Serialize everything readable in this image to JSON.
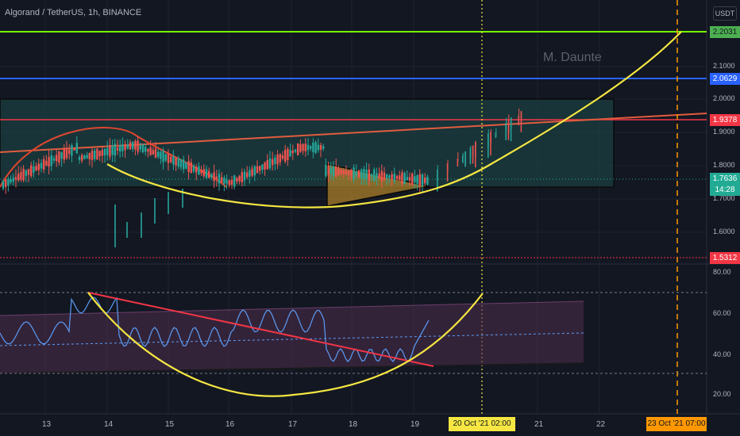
{
  "header": {
    "title": "Algorand / TetherUS, 1h, BINANCE",
    "unit": "USDT",
    "watermark": "M. Daunte"
  },
  "price_axis": {
    "ticks": [
      "2.0000",
      "1.9000",
      "1.8000",
      "1.7000",
      "1.6000"
    ],
    "labels": [
      {
        "value": "2.2031",
        "color": "#4caf50",
        "text_color": "#131722"
      },
      {
        "value": "2.1000",
        "color": "",
        "text_color": "#b2b5be"
      },
      {
        "value": "2.0629",
        "color": "#2962ff",
        "text_color": "#ffffff"
      },
      {
        "value": "1.9378",
        "color": "#f23645",
        "text_color": "#ffffff"
      },
      {
        "value": "1.7636",
        "color": "#22ab94",
        "text_color": "#ffffff"
      },
      {
        "value": "14:28",
        "color": "#22ab94",
        "text_color": "#ffffff"
      },
      {
        "value": "1.5312",
        "color": "#f23645",
        "text_color": "#ffffff"
      }
    ]
  },
  "rsi_axis": {
    "ticks": [
      "80.00",
      "60.00",
      "40.00",
      "20.00"
    ]
  },
  "time_axis": {
    "ticks": [
      "13",
      "14",
      "15",
      "16",
      "17",
      "18",
      "19",
      "21",
      "22"
    ],
    "crosshair_label": "20 Oct '21   02:00",
    "marker_label": "23 Oct '21   07:00"
  },
  "colors": {
    "background": "#131722",
    "up_candle": "#26a69a",
    "down_candle": "#ef5350",
    "yellow_curve": "#f5e642",
    "green_line": "#76ff03",
    "blue_line": "#2962ff",
    "red_line": "#f23645",
    "box_fill": "#1e4d4a",
    "rsi_band": "#4a2c4a",
    "rsi_line": "#5b9cf6"
  }
}
